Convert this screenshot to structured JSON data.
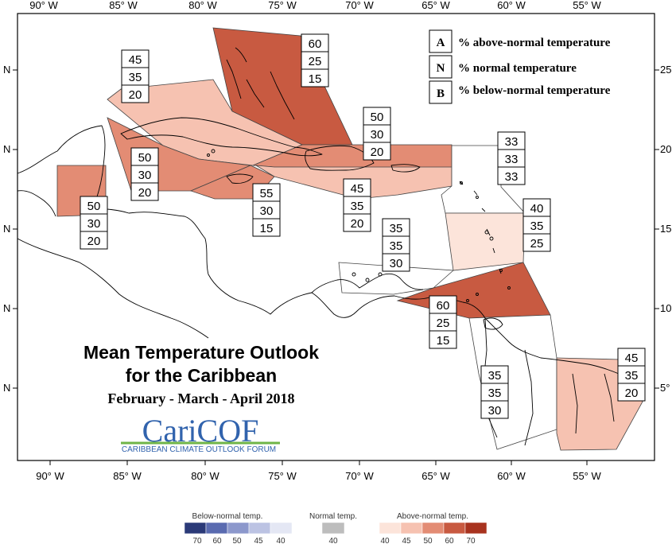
{
  "top_axis": [
    "90° W",
    "85° W",
    "80° W",
    "75° W",
    "70° W",
    "65° W",
    "60° W",
    "55° W"
  ],
  "bottom_axis": [
    "90° W",
    "85° W",
    "80° W",
    "75° W",
    "70° W",
    "65° W",
    "60° W",
    "55° W"
  ],
  "left_axis": [
    "N",
    "N",
    "N",
    "N",
    "N"
  ],
  "right_axis": [
    "25",
    "20",
    "15",
    "10",
    "5°"
  ],
  "legend": [
    {
      "code": "A",
      "text": "% above-normal temperature"
    },
    {
      "code": "N",
      "text": "% normal temperature"
    },
    {
      "code": "B",
      "text": "% below-normal temperature"
    }
  ],
  "title": {
    "line1": "Mean Temperature Outlook",
    "line2": "for the Caribbean",
    "period": "February - March - April 2018",
    "logo": "CariCOF",
    "logo_sub": "CARIBBEAN CLIMATE OUTLOOK FORUM"
  },
  "regions": [
    {
      "id": "bahamas",
      "fill": "#c85a41",
      "above": 60,
      "normal": 25,
      "below": 15
    },
    {
      "id": "cuba",
      "fill": "#f6c2b1",
      "above": 45,
      "normal": 35,
      "below": 20
    },
    {
      "id": "caymans",
      "fill": "#e38c74",
      "above": 50,
      "normal": 30,
      "below": 20
    },
    {
      "id": "belize",
      "fill": "#e38c74",
      "above": 50,
      "normal": 30,
      "below": 20
    },
    {
      "id": "jamaica",
      "fill": "#e38c74",
      "above": 55,
      "normal": 30,
      "below": 15
    },
    {
      "id": "hispaniola-north",
      "fill": "#e38c74",
      "above": 50,
      "normal": 30,
      "below": 20
    },
    {
      "id": "hispaniola-south",
      "fill": "#f6c2b1",
      "above": 45,
      "normal": 35,
      "below": 20
    },
    {
      "id": "leeward",
      "fill": "#ffffff",
      "above": 33,
      "normal": 33,
      "below": 33
    },
    {
      "id": "windward",
      "fill": "#fce4da",
      "above": 40,
      "normal": 35,
      "below": 25
    },
    {
      "id": "abc-islands",
      "fill": "#ffffff",
      "above": 35,
      "normal": 35,
      "below": 30
    },
    {
      "id": "trinidad",
      "fill": "#c85a41",
      "above": 60,
      "normal": 25,
      "below": 15
    },
    {
      "id": "guyana",
      "fill": "#ffffff",
      "above": 35,
      "normal": 35,
      "below": 30
    },
    {
      "id": "suriname",
      "fill": "#f6c2b1",
      "above": 45,
      "normal": 35,
      "below": 20
    }
  ],
  "colorbar": {
    "below": {
      "title": "Below-normal temp.",
      "colors": [
        "#2b3a78",
        "#5a6bb0",
        "#8c98cc",
        "#bcc3e3",
        "#e4e7f4"
      ],
      "ticks": [
        "70",
        "60",
        "50",
        "45",
        "40"
      ]
    },
    "normal": {
      "title": "Normal temp.",
      "color": "#bdbdbd",
      "tick": "40"
    },
    "above": {
      "title": "Above-normal temp.",
      "colors": [
        "#fce4da",
        "#f6c2b1",
        "#e38c74",
        "#c85a41",
        "#a8331f"
      ],
      "ticks": [
        "40",
        "45",
        "50",
        "60",
        "70"
      ]
    }
  }
}
